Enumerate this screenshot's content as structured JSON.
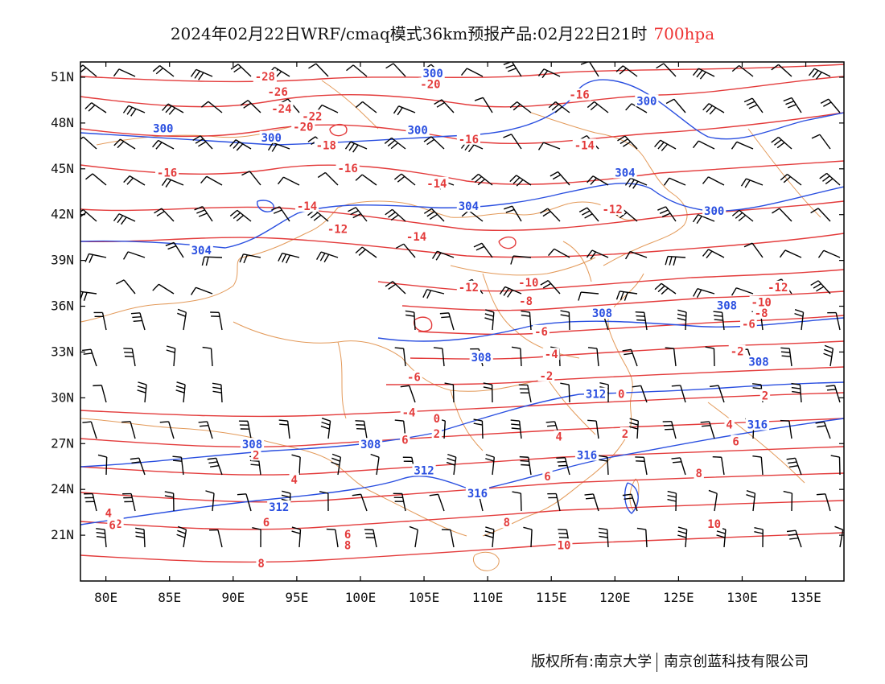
{
  "title": {
    "text": "2024年02月22日WRF/cmaq模式36km预报产品:02月22日21时",
    "level": "700hpa"
  },
  "colors": {
    "temperature": "#e33b3b",
    "height": "#2a4fe0",
    "border": "#e39a5a",
    "wind": "#000000",
    "level_text": "#e33333"
  },
  "axes": {
    "lon_ticks": [
      "80E",
      "85E",
      "90E",
      "95E",
      "100E",
      "105E",
      "110E",
      "115E",
      "120E",
      "125E",
      "130E",
      "135E"
    ],
    "lon_values": [
      80,
      85,
      90,
      95,
      100,
      105,
      110,
      115,
      120,
      125,
      130,
      135
    ],
    "lat_ticks": [
      "51N",
      "48N",
      "45N",
      "42N",
      "39N",
      "36N",
      "33N",
      "30N",
      "27N",
      "24N",
      "21N"
    ],
    "lat_values": [
      51,
      48,
      45,
      42,
      39,
      36,
      33,
      30,
      27,
      24,
      21
    ],
    "lon_range": [
      78,
      138
    ],
    "lat_range": [
      18,
      52
    ]
  },
  "temperature_labels": [
    {
      "text": "-28",
      "lon": 92.5,
      "lat": 51.0
    },
    {
      "text": "-26",
      "lon": 93.5,
      "lat": 50.0
    },
    {
      "text": "-24",
      "lon": 93.8,
      "lat": 48.9
    },
    {
      "text": "-22",
      "lon": 96.2,
      "lat": 48.4
    },
    {
      "text": "-20",
      "lon": 95.5,
      "lat": 47.7
    },
    {
      "text": "-20",
      "lon": 105.5,
      "lat": 50.5
    },
    {
      "text": "-18",
      "lon": 97.3,
      "lat": 46.5
    },
    {
      "text": "-16",
      "lon": 99.0,
      "lat": 45.0
    },
    {
      "text": "-16",
      "lon": 84.8,
      "lat": 44.7
    },
    {
      "text": "-16",
      "lon": 108.5,
      "lat": 46.9
    },
    {
      "text": "-16",
      "lon": 117.2,
      "lat": 49.8
    },
    {
      "text": "-14",
      "lon": 95.8,
      "lat": 42.5
    },
    {
      "text": "-14",
      "lon": 106.0,
      "lat": 44.0
    },
    {
      "text": "-14",
      "lon": 104.4,
      "lat": 40.5
    },
    {
      "text": "-14",
      "lon": 117.6,
      "lat": 46.5
    },
    {
      "text": "-12",
      "lon": 98.2,
      "lat": 41.0
    },
    {
      "text": "-12",
      "lon": 119.8,
      "lat": 42.3
    },
    {
      "text": "-12",
      "lon": 108.5,
      "lat": 37.2
    },
    {
      "text": "-12",
      "lon": 132.8,
      "lat": 37.2
    },
    {
      "text": "-10",
      "lon": 113.2,
      "lat": 37.5
    },
    {
      "text": "-10",
      "lon": 131.5,
      "lat": 36.2
    },
    {
      "text": "-8",
      "lon": 113.0,
      "lat": 36.3
    },
    {
      "text": "-8",
      "lon": 131.5,
      "lat": 35.5
    },
    {
      "text": "-6",
      "lon": 114.2,
      "lat": 34.3
    },
    {
      "text": "-6",
      "lon": 130.5,
      "lat": 34.8
    },
    {
      "text": "-6",
      "lon": 104.2,
      "lat": 31.3
    },
    {
      "text": "-4",
      "lon": 115.0,
      "lat": 32.8
    },
    {
      "text": "-4",
      "lon": 103.8,
      "lat": 29.0
    },
    {
      "text": "-2",
      "lon": 114.6,
      "lat": 31.4
    },
    {
      "text": "-2",
      "lon": 129.6,
      "lat": 33.0
    },
    {
      "text": "0",
      "lon": 106.0,
      "lat": 28.6
    },
    {
      "text": "0",
      "lon": 120.5,
      "lat": 30.2
    },
    {
      "text": "2",
      "lon": 106.0,
      "lat": 27.6
    },
    {
      "text": "2",
      "lon": 91.8,
      "lat": 26.2
    },
    {
      "text": "2",
      "lon": 120.8,
      "lat": 27.6
    },
    {
      "text": "2",
      "lon": 131.8,
      "lat": 30.1
    },
    {
      "text": "2",
      "lon": 81.0,
      "lat": 21.7
    },
    {
      "text": "4",
      "lon": 94.8,
      "lat": 24.6
    },
    {
      "text": "4",
      "lon": 115.6,
      "lat": 27.4
    },
    {
      "text": "4",
      "lon": 129.0,
      "lat": 28.2
    },
    {
      "text": "4",
      "lon": 80.2,
      "lat": 22.4
    },
    {
      "text": "6",
      "lon": 103.5,
      "lat": 27.2
    },
    {
      "text": "6",
      "lon": 114.7,
      "lat": 24.8
    },
    {
      "text": "6",
      "lon": 129.5,
      "lat": 27.1
    },
    {
      "text": "6",
      "lon": 92.6,
      "lat": 21.8
    },
    {
      "text": "6",
      "lon": 99.0,
      "lat": 21.0
    },
    {
      "text": "6",
      "lon": 80.5,
      "lat": 21.6
    },
    {
      "text": "8",
      "lon": 99.0,
      "lat": 20.3
    },
    {
      "text": "8",
      "lon": 111.5,
      "lat": 21.8
    },
    {
      "text": "8",
      "lon": 126.6,
      "lat": 25.0
    },
    {
      "text": "8",
      "lon": 92.2,
      "lat": 19.1
    },
    {
      "text": "10",
      "lon": 116.0,
      "lat": 20.3
    },
    {
      "text": "10",
      "lon": 127.8,
      "lat": 21.7
    }
  ],
  "height_labels": [
    {
      "text": "300",
      "lon": 84.5,
      "lat": 47.6
    },
    {
      "text": "300",
      "lon": 93.0,
      "lat": 47.0
    },
    {
      "text": "300",
      "lon": 104.5,
      "lat": 47.5
    },
    {
      "text": "300",
      "lon": 105.7,
      "lat": 51.2
    },
    {
      "text": "300",
      "lon": 122.5,
      "lat": 49.4
    },
    {
      "text": "300",
      "lon": 127.8,
      "lat": 42.2
    },
    {
      "text": "304",
      "lon": 87.5,
      "lat": 39.6
    },
    {
      "text": "304",
      "lon": 108.5,
      "lat": 42.5
    },
    {
      "text": "304",
      "lon": 120.8,
      "lat": 44.7
    },
    {
      "text": "308",
      "lon": 119.0,
      "lat": 35.5
    },
    {
      "text": "308",
      "lon": 109.5,
      "lat": 32.6
    },
    {
      "text": "308",
      "lon": 91.5,
      "lat": 26.9
    },
    {
      "text": "308",
      "lon": 100.8,
      "lat": 26.9
    },
    {
      "text": "308",
      "lon": 131.3,
      "lat": 32.3
    },
    {
      "text": "308",
      "lon": 128.8,
      "lat": 36.0
    },
    {
      "text": "312",
      "lon": 105.0,
      "lat": 25.2
    },
    {
      "text": "312",
      "lon": 93.6,
      "lat": 22.8
    },
    {
      "text": "312",
      "lon": 118.5,
      "lat": 30.2
    },
    {
      "text": "316",
      "lon": 109.2,
      "lat": 23.7
    },
    {
      "text": "316",
      "lon": 117.8,
      "lat": 26.2
    },
    {
      "text": "316",
      "lon": 131.2,
      "lat": 28.2
    }
  ],
  "footer": {
    "copyright": "版权所有:南京大学",
    "company": "南京创蓝科技有限公司"
  }
}
